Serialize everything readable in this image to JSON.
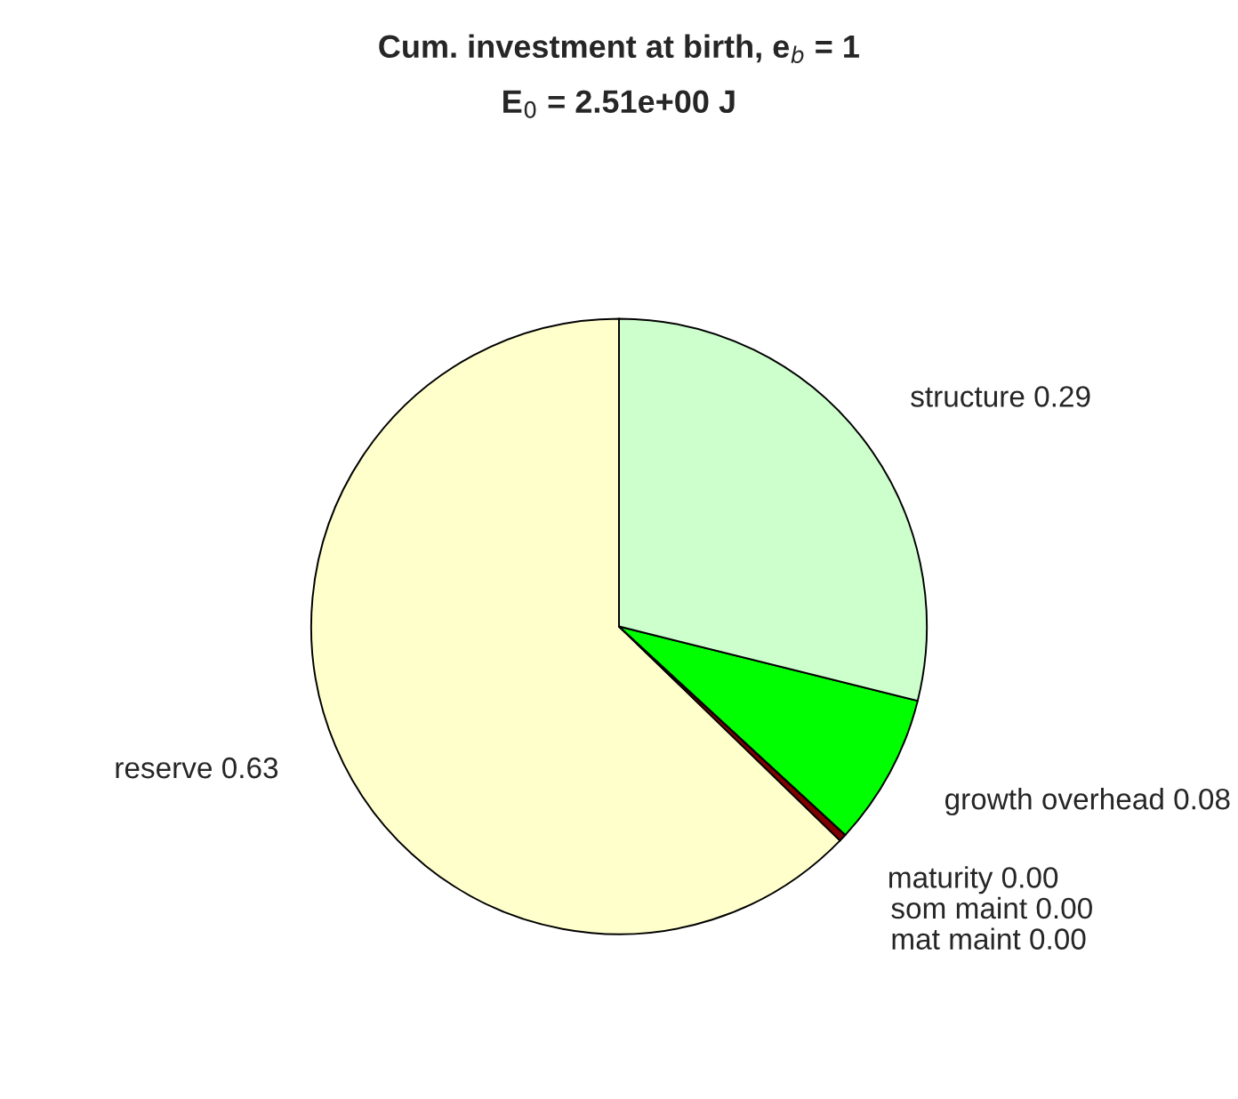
{
  "chart_data": {
    "type": "pie",
    "title": "Cum. investment at birth, e$_{b}$ = 1",
    "subtitle": "E$_{0}$ = 2.51e+00 J",
    "categories": [
      "reserve 0.63",
      "maturity 0.00",
      "som maint 0.00",
      "mat maint 0.00",
      "growth overhead 0.08",
      "structure 0.29"
    ],
    "values": [
      0.63,
      0.004,
      0,
      0,
      0.08,
      0.29
    ],
    "colors": [
      "#ffffcc",
      "#800000",
      "#ff8080",
      "#ffcc99",
      "#00ff00",
      "#ccffcc"
    ]
  }
}
